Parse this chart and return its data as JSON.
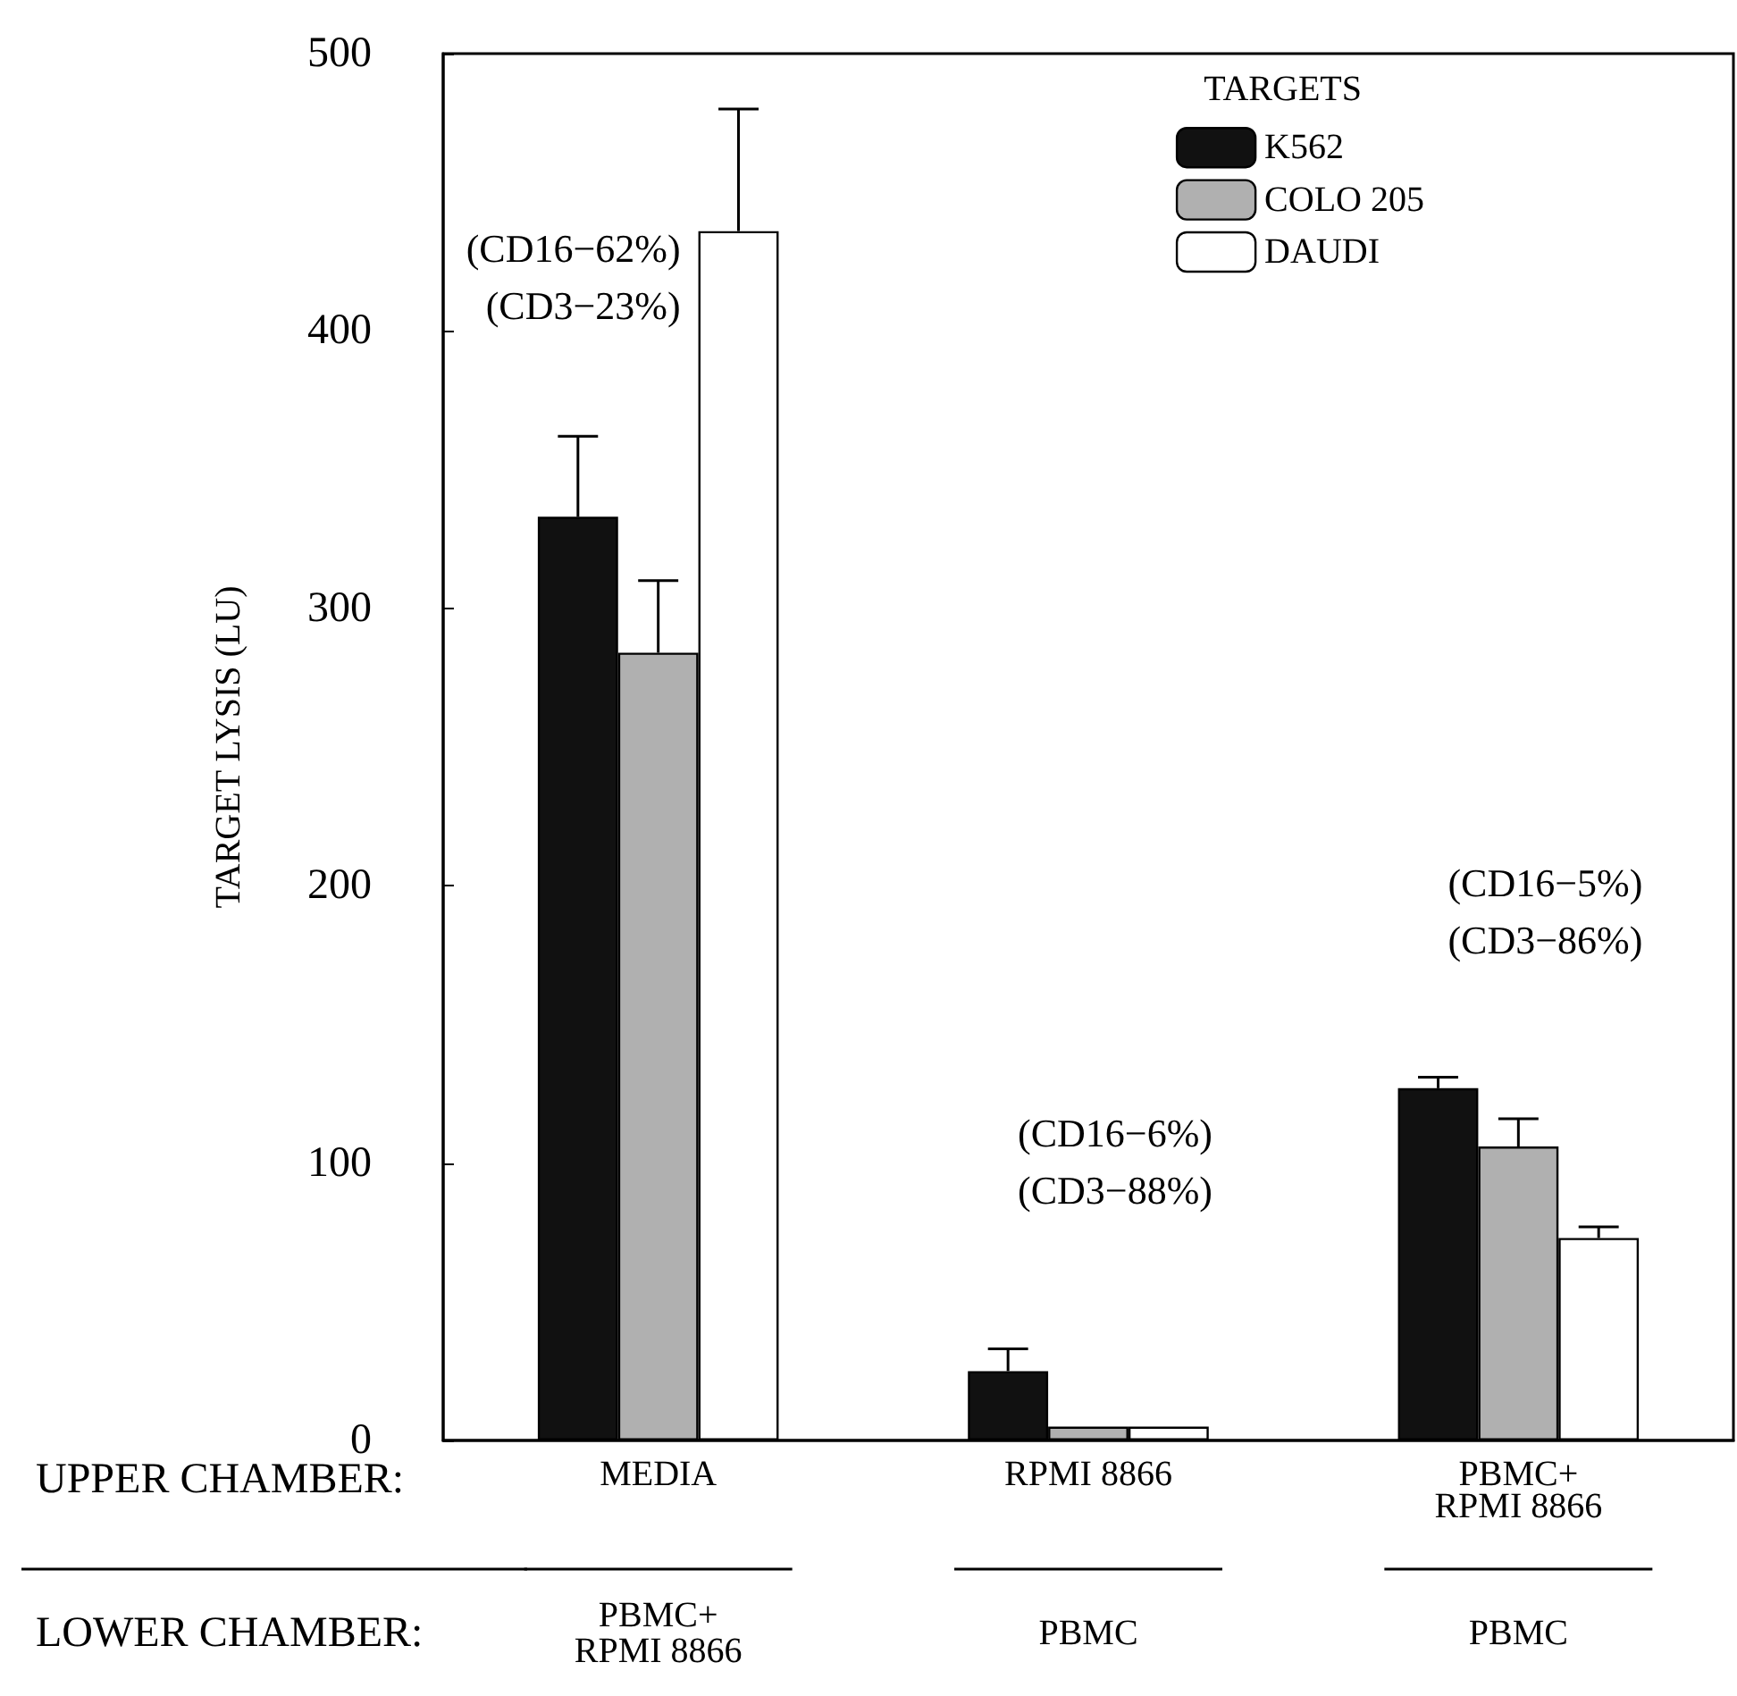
{
  "chart_data": {
    "type": "bar",
    "ylabel": "TARGET LYSIS (LU)",
    "legend_title": "TARGETS",
    "categories": [
      "MEDIA",
      "RPMI 8866",
      "PBMC+\nRPMI 8866"
    ],
    "series": [
      {
        "name": "K562",
        "color": "#111111",
        "values": [
          333,
          25,
          127
        ],
        "errors": [
          [
            333,
            362
          ],
          [
            25,
            33
          ],
          [
            127,
            131
          ]
        ]
      },
      {
        "name": "COLO 205",
        "color": "#b0b0b0",
        "values": [
          284,
          5,
          106
        ],
        "errors": [
          [
            284,
            310
          ],
          null,
          [
            106,
            116
          ]
        ]
      },
      {
        "name": "DAUDI",
        "color": "#ffffff",
        "values": [
          436,
          5,
          73
        ],
        "errors": [
          [
            436,
            480
          ],
          null,
          [
            73,
            77
          ]
        ]
      }
    ],
    "ylim": [
      0,
      500
    ],
    "yticks": [
      0,
      100,
      200,
      300,
      400,
      500
    ],
    "grid": false,
    "legend": "top right",
    "annotations": [
      "(CD16−62%)\n(CD3−23%)",
      "(CD16−6%)\n(CD3−88%)",
      "(CD16−5%)\n(CD3−86%)",
      "UPPER CHAMBER:",
      "LOWER CHAMBER:",
      "PBMC+\nRPMI 8866",
      "PBMC",
      "PBMC"
    ]
  }
}
